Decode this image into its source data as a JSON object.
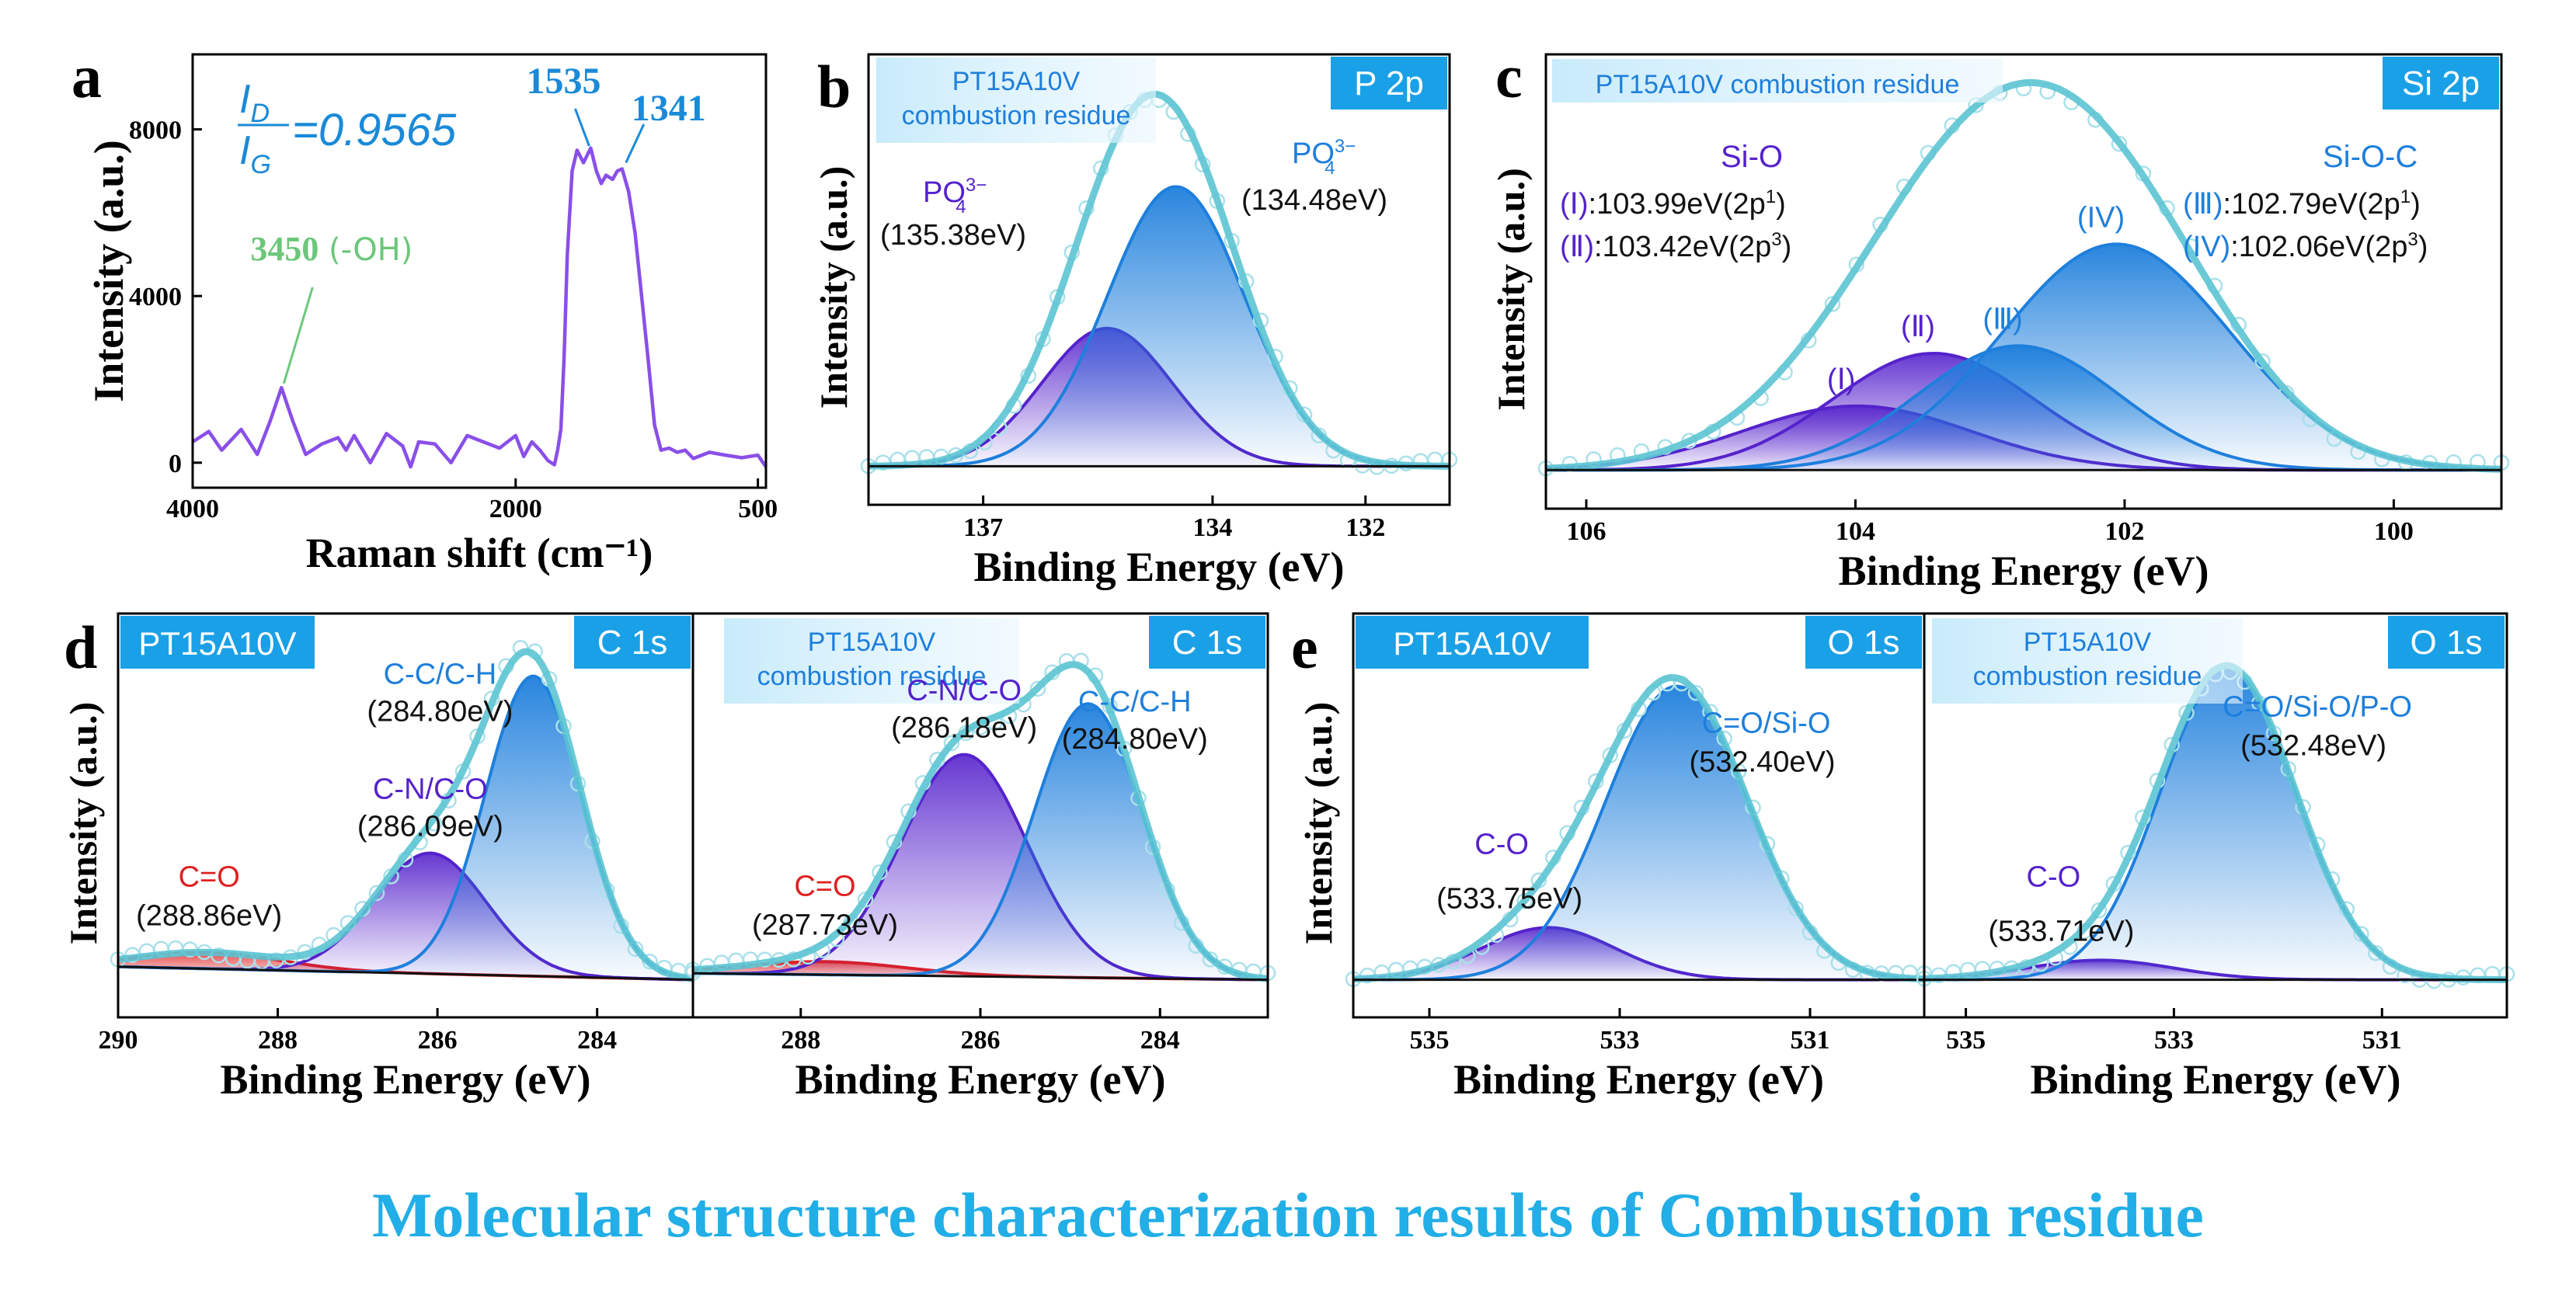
{
  "colors": {
    "frame": "#000000",
    "fit": "#5cc4d3",
    "raw": "#a9e0ea",
    "purple": "#5522cc",
    "blue": "#1e7fdc",
    "red": "#e02020",
    "labelbox": "#1aa0e6",
    "lightbox": "#e8f6fd",
    "caption": "#22aee6",
    "raman_line": "#8a4fe8",
    "oh_green": "#6cc77a",
    "ratio_blue": "#1a8ad8"
  },
  "caption": "Molecular structure characterization results of Combustion residue",
  "chart_data": [
    {
      "id": "a",
      "panel_letter": "a",
      "type": "line",
      "xlabel": "Raman shift (cm⁻¹)",
      "ylabel": "Intensity (a.u.)",
      "xlim": [
        4000,
        450
      ],
      "ylim": [
        -600,
        9800
      ],
      "xticks": [
        "4000",
        "2000",
        "500"
      ],
      "yticks": [
        "0",
        "4000",
        "8000"
      ],
      "ratio_text": "=0.9565",
      "ratio_num": "I",
      "ratio_num_sub": "D",
      "ratio_den": "I",
      "ratio_den_sub": "G",
      "annotations": [
        {
          "x": 1535,
          "label": "1535"
        },
        {
          "x": 1341,
          "label": "1341"
        },
        {
          "x": 3450,
          "label": "3450",
          "suffix": " (-OH)"
        }
      ],
      "series": [
        {
          "x": [
            4000,
            3900,
            3820,
            3700,
            3600,
            3520,
            3450,
            3380,
            3300,
            3200,
            3100,
            3050,
            3000,
            2900,
            2800,
            2700,
            2650,
            2600,
            2500,
            2400,
            2300,
            2200,
            2100,
            2000,
            1950,
            1900,
            1850,
            1800,
            1760,
            1740,
            1720,
            1700,
            1680,
            1650,
            1620,
            1580,
            1535,
            1500,
            1470,
            1440,
            1400,
            1370,
            1341,
            1300,
            1260,
            1220,
            1180,
            1140,
            1100,
            1050,
            1000,
            950,
            900,
            800,
            700,
            600,
            500,
            450
          ],
          "y": [
            500,
            750,
            300,
            800,
            200,
            1000,
            1800,
            1000,
            200,
            450,
            600,
            300,
            650,
            0,
            700,
            400,
            -100,
            500,
            450,
            0,
            650,
            500,
            350,
            650,
            150,
            500,
            300,
            50,
            -50,
            300,
            800,
            2500,
            5000,
            7000,
            7500,
            7200,
            7550,
            7000,
            6700,
            6900,
            6800,
            7000,
            7050,
            6500,
            5500,
            4000,
            2500,
            900,
            300,
            350,
            250,
            300,
            100,
            250,
            180,
            120,
            180,
            -100
          ]
        }
      ]
    },
    {
      "id": "b",
      "panel_letter": "b",
      "type": "line",
      "subtype": "xps_fit",
      "xlabel": "Binding Energy (eV)",
      "ylabel": "Intensity (a.u.)",
      "xlim": [
        138.5,
        130.9
      ],
      "ylim": [
        0,
        1
      ],
      "xticks": [
        137,
        134,
        132
      ],
      "element_label": "P 2p",
      "sample_label": "PT15A10V\ncombustion residue",
      "peaks": [
        {
          "name": "PO₄³⁻",
          "center": 135.38,
          "amp": 0.37,
          "sigma": 0.85,
          "color": "purple",
          "label": "(135.38eV)"
        },
        {
          "name": "PO₄³⁻",
          "center": 134.48,
          "amp": 0.75,
          "sigma": 0.9,
          "color": "blue",
          "label": "(134.48eV)"
        }
      ],
      "baseline": [
        0.02,
        0.02
      ]
    },
    {
      "id": "c",
      "panel_letter": "c",
      "type": "line",
      "subtype": "xps_fit",
      "xlabel": "Binding Energy (eV)",
      "ylabel": "Intensity (a.u.)",
      "xlim": [
        106.3,
        99.2
      ],
      "ylim": [
        0,
        1
      ],
      "xticks": [
        106,
        104,
        102,
        100
      ],
      "element_label": "Si 2p",
      "sample_label": "PT15A10V combustion residue",
      "group_left": "Si-O",
      "group_right": "Si-O-C",
      "legend_left": [
        {
          "tag": "(Ⅰ)",
          "text": ":103.99eV(2p",
          "sup": "1",
          "close": ")"
        },
        {
          "tag": "(Ⅱ)",
          "text": ":103.42eV(2p",
          "sup": "3",
          "close": ")"
        }
      ],
      "legend_right": [
        {
          "tag": "(Ⅲ)",
          "text": ":102.79eV(2p",
          "sup": "1",
          "close": ")"
        },
        {
          "tag": "(IV)",
          "text": ":102.06eV(2p",
          "sup": "3",
          "close": ")"
        }
      ],
      "peaks": [
        {
          "tag": "(Ⅰ)",
          "center": 103.99,
          "amp": 0.17,
          "sigma": 0.85,
          "color": "purple"
        },
        {
          "tag": "(Ⅱ)",
          "center": 103.42,
          "amp": 0.31,
          "sigma": 0.75,
          "color": "purple"
        },
        {
          "tag": "(Ⅲ)",
          "center": 102.79,
          "amp": 0.33,
          "sigma": 0.75,
          "color": "blue"
        },
        {
          "tag": "(IV)",
          "center": 102.06,
          "amp": 0.6,
          "sigma": 0.85,
          "color": "blue"
        }
      ],
      "baseline": [
        0.02,
        0.02
      ]
    },
    {
      "id": "d1",
      "panel_letter": "d",
      "type": "line",
      "subtype": "xps_fit",
      "xlabel": "Binding Energy (eV)",
      "ylabel": "Intensity (a.u.)",
      "xlim": [
        290.0,
        282.8
      ],
      "ylim": [
        0,
        1
      ],
      "xticks": [
        290,
        288,
        286,
        284
      ],
      "element_label": "C 1s",
      "sample_label": "PT15A10V",
      "peaks": [
        {
          "name": "C=O",
          "center": 288.86,
          "amp": 0.05,
          "sigma": 0.9,
          "color": "red",
          "label": "(288.86eV)"
        },
        {
          "name": "C-N/C-O",
          "center": 286.09,
          "amp": 0.37,
          "sigma": 0.7,
          "color": "purple",
          "label": "(286.09eV)"
        },
        {
          "name": "C-C/C-H",
          "center": 284.8,
          "amp": 0.92,
          "sigma": 0.6,
          "color": "blue",
          "label": "(284.80eV)"
        }
      ],
      "baseline": [
        0.06,
        0.02
      ]
    },
    {
      "id": "d2",
      "panel_letter": "",
      "type": "line",
      "subtype": "xps_fit",
      "xlabel": "Binding Energy (eV)",
      "ylabel": "",
      "xlim": [
        289.2,
        282.8
      ],
      "ylim": [
        0,
        1
      ],
      "xticks": [
        288,
        286,
        284
      ],
      "element_label": "C 1s",
      "sample_label": "PT15A10V\ncombustion residue",
      "peaks": [
        {
          "name": "C=O",
          "center": 287.73,
          "amp": 0.04,
          "sigma": 0.9,
          "color": "red",
          "label": "(287.73eV)"
        },
        {
          "name": "C-N/C-O",
          "center": 286.18,
          "amp": 0.68,
          "sigma": 0.7,
          "color": "purple",
          "label": "(286.18eV)"
        },
        {
          "name": "C-C/C-H",
          "center": 284.8,
          "amp": 0.84,
          "sigma": 0.6,
          "color": "blue",
          "label": "(284.80eV)"
        }
      ],
      "baseline": [
        0.04,
        0.02
      ]
    },
    {
      "id": "e1",
      "panel_letter": "e",
      "type": "line",
      "subtype": "xps_fit",
      "xlabel": "Binding Energy (eV)",
      "ylabel": "Intensity (a.u.)",
      "xlim": [
        535.8,
        529.8
      ],
      "ylim": [
        0,
        1
      ],
      "xticks": [
        535,
        533,
        531
      ],
      "element_label": "O 1s",
      "sample_label": "PT15A10V",
      "peaks": [
        {
          "name": "C-O",
          "center": 533.75,
          "amp": 0.16,
          "sigma": 0.7,
          "color": "purple",
          "label": "(533.75eV)"
        },
        {
          "name": "C=O/Si-O",
          "center": 532.4,
          "amp": 0.9,
          "sigma": 0.75,
          "color": "blue",
          "label": "(532.40eV)"
        }
      ],
      "baseline": [
        0.02,
        0.02
      ]
    },
    {
      "id": "e2",
      "panel_letter": "",
      "type": "line",
      "subtype": "xps_fit",
      "xlabel": "Binding Energy (eV)",
      "ylabel": "",
      "xlim": [
        535.4,
        529.8
      ],
      "ylim": [
        0,
        1
      ],
      "xticks": [
        535,
        533,
        531
      ],
      "element_label": "O 1s",
      "sample_label": "PT15A10V\ncombustion residue",
      "peaks": [
        {
          "name": "C-O",
          "center": 533.71,
          "amp": 0.06,
          "sigma": 0.7,
          "color": "purple",
          "label": "(533.71eV)"
        },
        {
          "name": "C=O/Si-O/P-O",
          "center": 532.48,
          "amp": 0.95,
          "sigma": 0.65,
          "color": "blue",
          "label": "(532.48eV)"
        }
      ],
      "baseline": [
        0.02,
        0.02
      ]
    }
  ]
}
